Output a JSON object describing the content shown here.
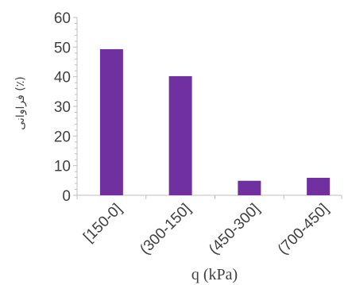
{
  "chart_data": {
    "type": "bar",
    "categories": [
      "[150-0]",
      "(300-150]",
      "(450-300]",
      "(700-450]"
    ],
    "values": [
      49.3,
      40.2,
      4.9,
      5.9
    ],
    "xlabel": "q (kPa)",
    "ylabel": "فراوانی (٪)",
    "ylim": [
      0,
      60
    ],
    "yticks": [
      0,
      10,
      20,
      30,
      40,
      50,
      60
    ],
    "grid": false,
    "bar_color": "#7030a0",
    "axis_color": "#bfbfbf"
  }
}
